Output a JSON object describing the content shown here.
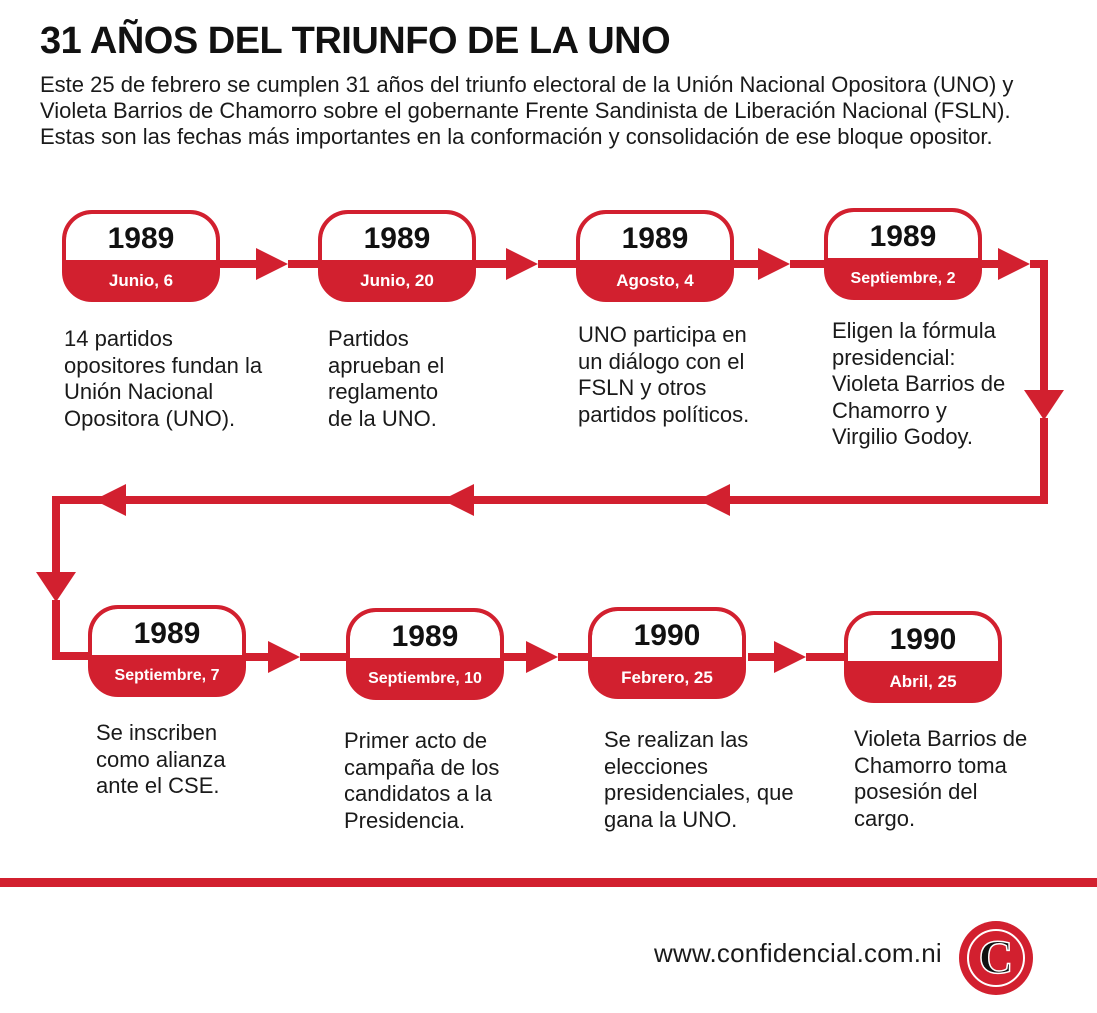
{
  "title": "31 AÑOS DEL TRIUNFO DE LA UNO",
  "intro": "Este 25 de febrero se cumplen 31 años del triunfo electoral de la Unión Nacional Opositora (UNO) y Violeta Barrios de Chamorro sobre el gobernante Frente Sandinista de Liberación Nacional (FSLN). Estas son las fechas más importantes en la conformación y consolidación de ese bloque opositor.",
  "events": [
    {
      "year": "1989",
      "date": "Junio, 6",
      "text": "14 partidos opositores fundan la Unión Nacional Opositora (UNO)."
    },
    {
      "year": "1989",
      "date": "Junio, 20",
      "text": "Partidos aprueban el reglamento de la UNO."
    },
    {
      "year": "1989",
      "date": "Agosto, 4",
      "text": "UNO participa en un diálogo con el FSLN y otros partidos políticos."
    },
    {
      "year": "1989",
      "date": "Septiembre, 2",
      "text": "Eligen la fórmula presidencial: Violeta Barrios de Chamorro y Virgilio Godoy."
    },
    {
      "year": "1989",
      "date": "Septiembre, 7",
      "text": "Se inscriben como alianza ante el CSE."
    },
    {
      "year": "1989",
      "date": "Septiembre, 10",
      "text": "Primer acto de campaña de los candidatos a la Presidencia."
    },
    {
      "year": "1990",
      "date": "Febrero, 25",
      "text": "Se realizan las elecciones presidenciales, que gana la UNO."
    },
    {
      "year": "1990",
      "date": "Abril, 25",
      "text": "Violeta Barrios de Chamorro toma posesión del cargo."
    }
  ],
  "footer": {
    "website": "www.confidencial.com.ni",
    "logo_letter": "C"
  },
  "colors": {
    "accent": "#d2202f",
    "text": "#1a1a1a",
    "background": "#ffffff"
  }
}
